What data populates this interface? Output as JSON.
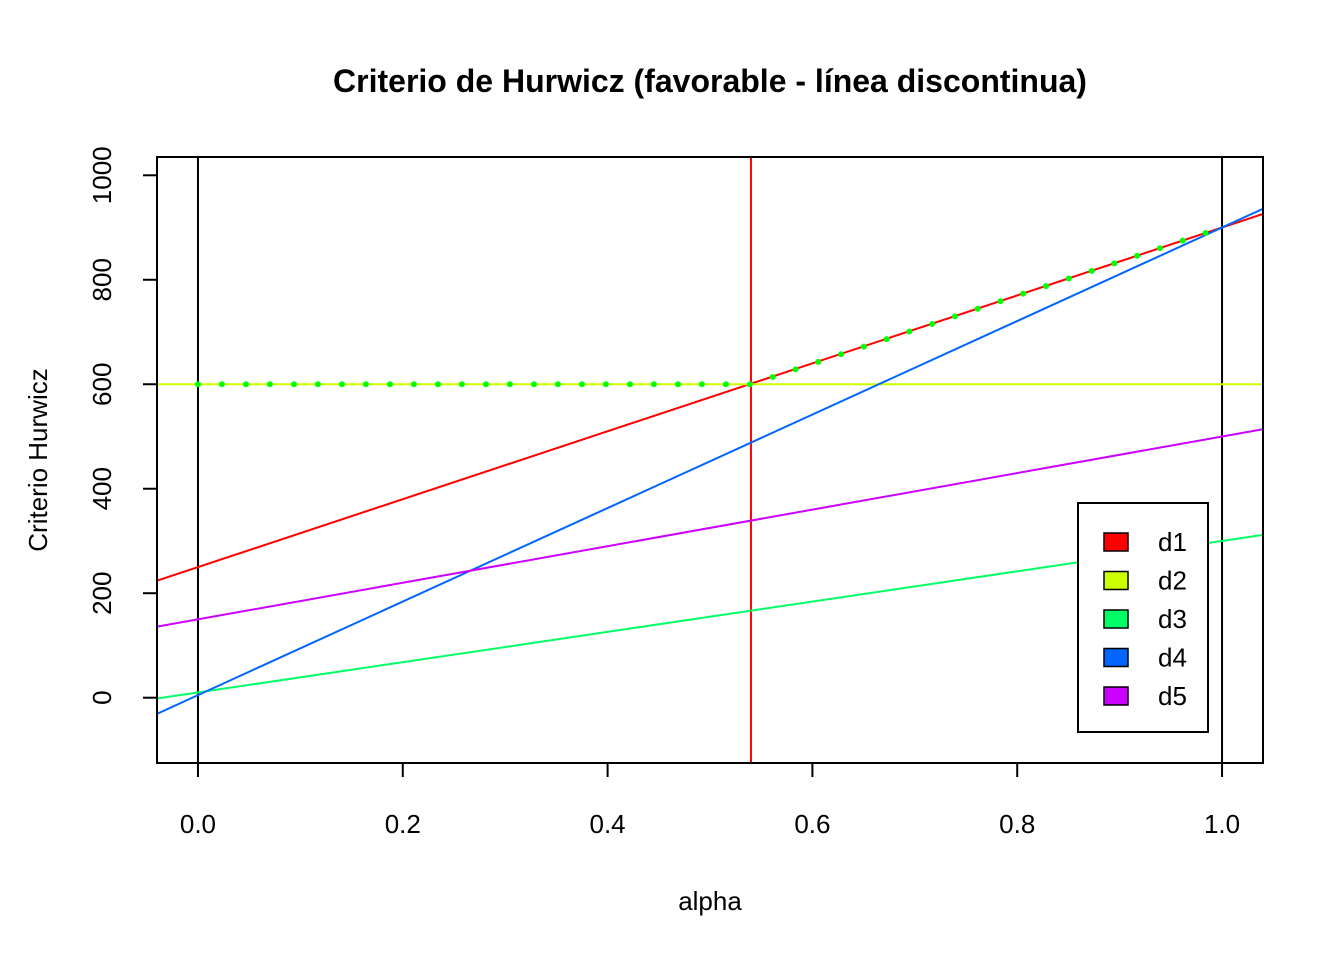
{
  "chart_data": {
    "type": "line",
    "title": "Criterio de Hurwicz (favorable - línea discontinua)",
    "xlabel": "alpha",
    "ylabel": "Criterio Hurwicz",
    "xlim": [
      -0.04,
      1.04
    ],
    "ylim": [
      -125,
      1035
    ],
    "xticks": [
      0.0,
      0.2,
      0.4,
      0.6,
      0.8,
      1.0
    ],
    "xtick_labels": [
      "0.0",
      "0.2",
      "0.4",
      "0.6",
      "0.8",
      "1.0"
    ],
    "yticks": [
      0,
      200,
      400,
      600,
      800,
      1000
    ],
    "ytick_labels": [
      "0",
      "200",
      "400",
      "600",
      "800",
      "1000"
    ],
    "grid": false,
    "legend_position": "bottom-right",
    "series": [
      {
        "name": "d1",
        "color": "#FF0000",
        "x": [
          0,
          1
        ],
        "y": [
          250,
          900
        ]
      },
      {
        "name": "d2",
        "color": "#CCFF00",
        "x": [
          0,
          1
        ],
        "y": [
          600,
          600
        ]
      },
      {
        "name": "d3",
        "color": "#00FF66",
        "x": [
          0,
          1
        ],
        "y": [
          10,
          300
        ]
      },
      {
        "name": "d4",
        "color": "#0066FF",
        "x": [
          0,
          1
        ],
        "y": [
          5,
          900
        ]
      },
      {
        "name": "d5",
        "color": "#CC00FF",
        "x": [
          0,
          1
        ],
        "y": [
          150,
          500
        ]
      }
    ],
    "optimum_curve": {
      "style": "dotted",
      "color": "#00FF00",
      "x": [
        0,
        0.54,
        1
      ],
      "y": [
        600,
        600,
        900
      ]
    },
    "vertical_lines": [
      {
        "x": 0,
        "color": "#000000"
      },
      {
        "x": 0.54,
        "color": "#FF0000"
      },
      {
        "x": 1,
        "color": "#000000"
      }
    ]
  }
}
